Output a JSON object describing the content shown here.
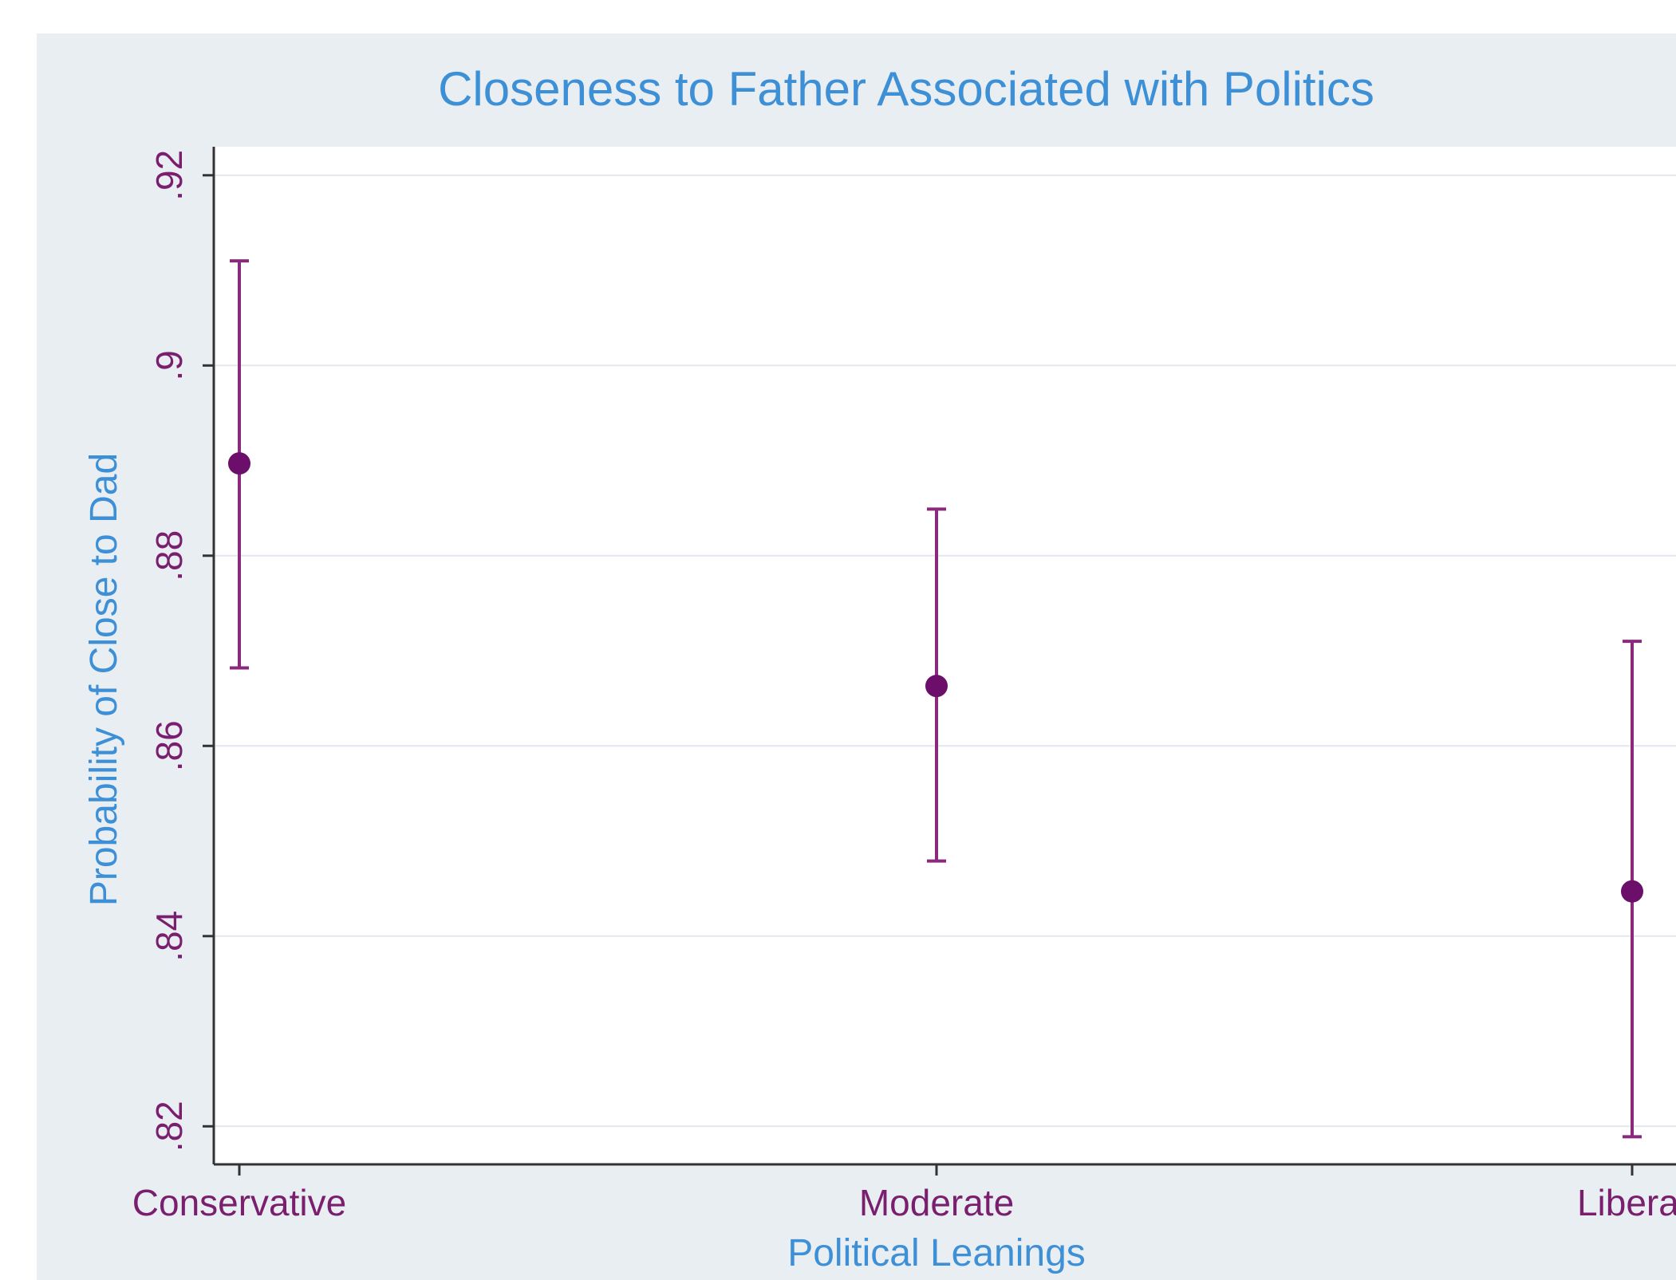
{
  "chart_data": {
    "type": "scatter",
    "title": "Closeness to Father Associated with Politics",
    "xlabel": "Political Leanings",
    "ylabel": "Probability of Close to Dad",
    "categories": [
      "Conservative",
      "Moderate",
      "Liberal"
    ],
    "points": [
      {
        "category": "Conservative",
        "estimate": 0.8897,
        "ci_low": 0.8682,
        "ci_high": 0.911
      },
      {
        "category": "Moderate",
        "estimate": 0.8663,
        "ci_low": 0.8479,
        "ci_high": 0.8849
      },
      {
        "category": "Liberal",
        "estimate": 0.8447,
        "ci_low": 0.8189,
        "ci_high": 0.871
      }
    ],
    "yticks": [
      0.82,
      0.84,
      0.86,
      0.88,
      0.9,
      0.92
    ],
    "ytick_labels": [
      ".82",
      ".84",
      ".86",
      ".88",
      ".9",
      ".92"
    ],
    "ylim": [
      0.816,
      0.923
    ],
    "grid": true,
    "colors": {
      "marker": "#6b0f6b",
      "errorbar": "#8b2a7d",
      "title": "#3d8fd6",
      "tick_labels": "#7a1f6e",
      "axis": "#333333",
      "grid": "#e4e8ee",
      "background": "#e9eef3",
      "plot_background": "#ffffff"
    }
  }
}
